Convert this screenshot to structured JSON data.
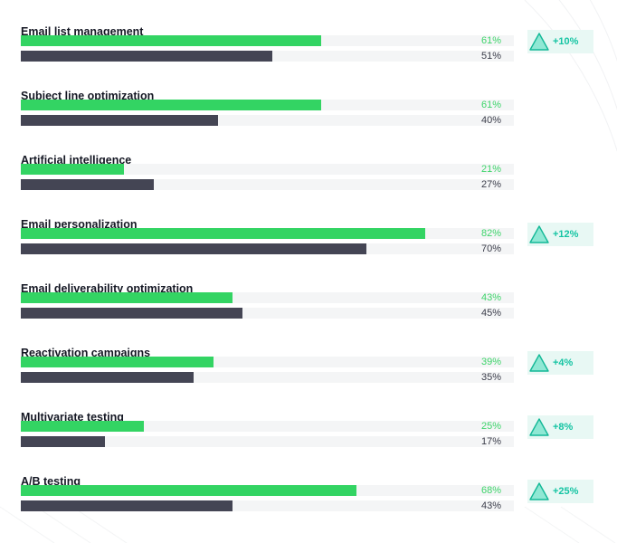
{
  "chart_data": {
    "type": "bar",
    "orientation": "horizontal",
    "title": "",
    "xlabel": "",
    "ylabel": "",
    "xlim": [
      0,
      100
    ],
    "grid": false,
    "legend": "none",
    "colors": {
      "current": "#33d463",
      "previous": "#444554",
      "track": "#f4f5f6",
      "current_text": "#3dd46a",
      "previous_text": "#3b3d4a",
      "badge_bg": "#e8f8f4",
      "badge_text": "#15c4a3"
    },
    "categories": [
      "Email list management",
      "Subject line optimization",
      "Artificial intelligence",
      "Email personalization",
      "Email deliverability optimization",
      "Reactivation campaigns",
      "Multivariate testing",
      "A/B testing"
    ],
    "series": [
      {
        "values": [
          61,
          61,
          21,
          82,
          43,
          39,
          25,
          68
        ],
        "labels": [
          "61%",
          "61%",
          "21%",
          "82%",
          "43%",
          "39%",
          "25%",
          "68%"
        ]
      },
      {
        "values": [
          51,
          40,
          27,
          70,
          45,
          35,
          17,
          43
        ],
        "labels": [
          "51%",
          "40%",
          "27%",
          "70%",
          "45%",
          "35%",
          "17%",
          "43%"
        ]
      }
    ],
    "badges": [
      "+10%",
      "",
      "",
      "+12%",
      "",
      "+4%",
      "+8%",
      "+25%"
    ],
    "badge_icon": "triangle-up-icon"
  }
}
